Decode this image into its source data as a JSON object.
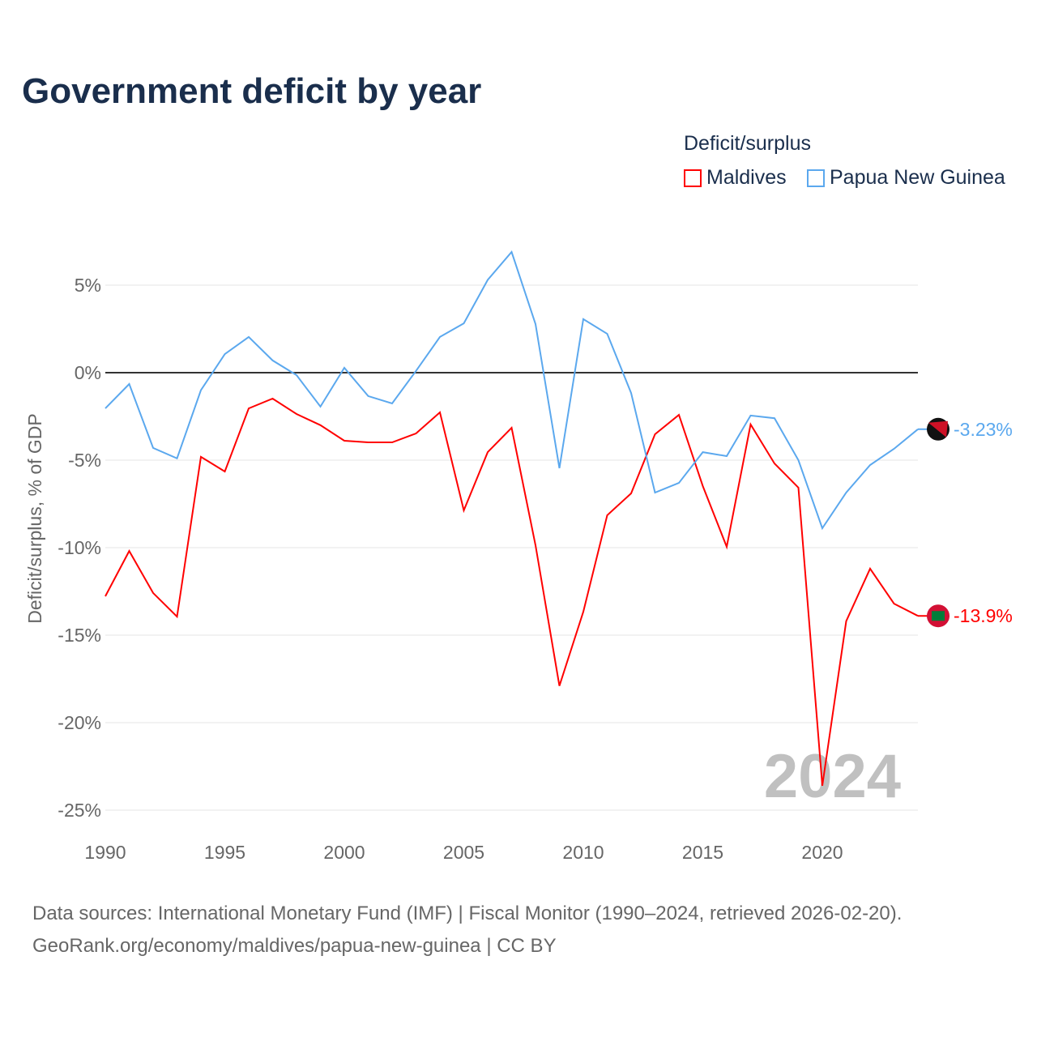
{
  "title": "Government deficit by year",
  "legend": {
    "title": "Deficit/surplus",
    "items": [
      {
        "label": "Maldives",
        "color": "#ff0000"
      },
      {
        "label": "Papua New Guinea",
        "color": "#5ba8ee"
      }
    ]
  },
  "watermark": "2024",
  "footer": {
    "line1": "Data sources: International Monetary Fund (IMF) | Fiscal Monitor (1990–2024, retrieved 2026-02-20).",
    "line2": "GeoRank.org/economy/maldives/papua-new-guinea | CC BY"
  },
  "chart_data": {
    "type": "line",
    "title": "Government deficit by year",
    "xlabel": "",
    "ylabel": "Deficit/surplus, % of GDP",
    "xlim": [
      1990,
      2024
    ],
    "ylim": [
      -25,
      5
    ],
    "yticks": [
      5,
      0,
      -5,
      -10,
      -15,
      -20,
      -25
    ],
    "ytick_labels": [
      "5%",
      "0%",
      "-5%",
      "-10%",
      "-15%",
      "-20%",
      "-25%"
    ],
    "xticks": [
      1990,
      1995,
      2000,
      2005,
      2010,
      2015,
      2020
    ],
    "xtick_labels": [
      "1990",
      "1995",
      "2000",
      "2005",
      "2010",
      "2015",
      "2020"
    ],
    "grid": true,
    "legend_position": "top-right",
    "x": [
      1990,
      1991,
      1992,
      1993,
      1994,
      1995,
      1996,
      1997,
      1998,
      1999,
      2000,
      2001,
      2002,
      2003,
      2004,
      2005,
      2006,
      2007,
      2008,
      2009,
      2010,
      2011,
      2012,
      2013,
      2014,
      2015,
      2016,
      2017,
      2018,
      2019,
      2020,
      2021,
      2022,
      2023,
      2024
    ],
    "series": [
      {
        "name": "Maldives",
        "color": "#ff0000",
        "end_label": "-13.9%",
        "values": [
          -12.78,
          -10.19,
          -12.59,
          -13.94,
          -4.81,
          -5.65,
          -2.04,
          -1.48,
          -2.36,
          -3.0,
          -3.89,
          -3.98,
          -3.98,
          -3.47,
          -2.27,
          -7.87,
          -4.54,
          -3.15,
          -9.86,
          -17.9,
          -13.66,
          -8.15,
          -6.9,
          -3.52,
          -2.41,
          -6.48,
          -9.95,
          -2.96,
          -5.19,
          -6.57,
          -23.6,
          -14.2,
          -11.2,
          -13.2,
          -13.9
        ]
      },
      {
        "name": "Papua New Guinea",
        "color": "#5ba8ee",
        "end_label": "-3.23%",
        "values": [
          -2.04,
          -0.65,
          -4.3,
          -4.9,
          -1.0,
          1.06,
          2.04,
          0.7,
          -0.14,
          -1.94,
          0.28,
          -1.34,
          -1.76,
          0.1,
          2.04,
          2.82,
          5.3,
          6.9,
          2.78,
          -5.46,
          3.06,
          2.22,
          -1.16,
          -6.85,
          -6.3,
          -4.54,
          -4.77,
          -2.45,
          -2.6,
          -5.0,
          -8.89,
          -6.85,
          -5.28,
          -4.35,
          -3.23
        ]
      }
    ]
  }
}
